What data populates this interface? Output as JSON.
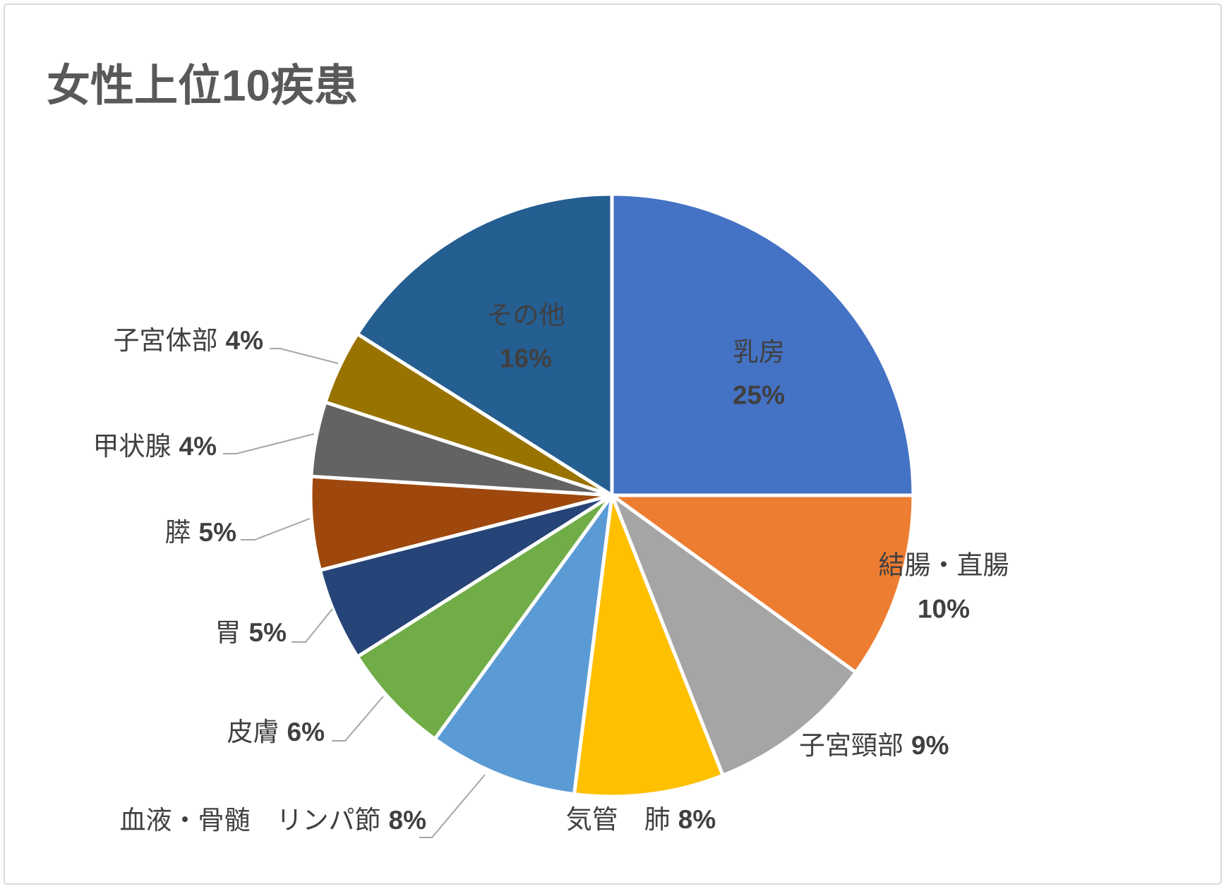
{
  "chart_data": {
    "type": "pie",
    "title": "女性上位10疾患",
    "categories": [
      "乳房",
      "結腸・直腸",
      "子宮頸部",
      "気管　肺",
      "血液・骨髄　リンパ節",
      "皮膚",
      "胃",
      "膵",
      "甲状腺",
      "子宮体部",
      "その他"
    ],
    "values": [
      25,
      10,
      9,
      8,
      8,
      6,
      5,
      5,
      4,
      4,
      16
    ],
    "unit": "%",
    "colors": [
      "#4472C4",
      "#ED7D31",
      "#A5A5A5",
      "#FFC000",
      "#5B9BD5",
      "#70AD47",
      "#264478",
      "#9E480E",
      "#636363",
      "#997300",
      "#255E91"
    ],
    "legend": "none"
  }
}
